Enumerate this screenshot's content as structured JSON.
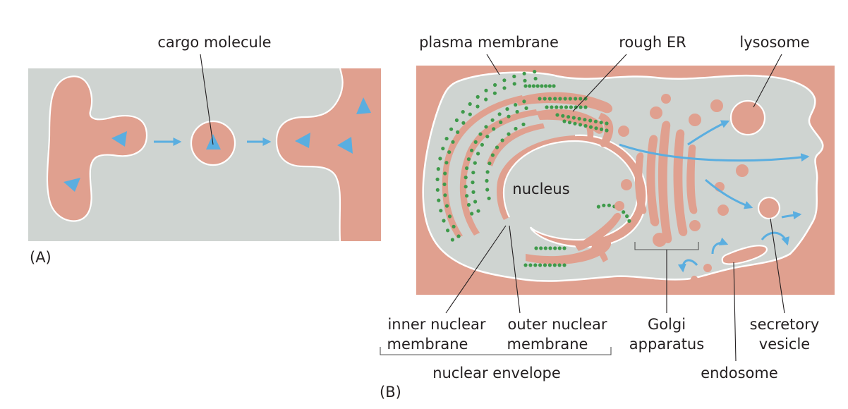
{
  "panel_a": {
    "panel_label": "(A)",
    "labels": {
      "cargo_molecule": "cargo molecule"
    }
  },
  "panel_b": {
    "panel_label": "(B)",
    "labels": {
      "plasma_membrane": "plasma membrane",
      "rough_er": "rough ER",
      "lysosome": "lysosome",
      "nucleus": "nucleus",
      "inner_nuclear_line1": "inner nuclear",
      "inner_nuclear_line2": "membrane",
      "outer_nuclear_line1": "outer nuclear",
      "outer_nuclear_line2": "membrane",
      "golgi_line1": "Golgi",
      "golgi_line2": "apparatus",
      "secretory_line1": "secretory",
      "secretory_line2": "vesicle",
      "nuclear_envelope": "nuclear envelope",
      "endosome": "endosome"
    }
  },
  "colors": {
    "cytosol": "#cfd4d1",
    "lumen": "#e0a08f",
    "membrane": "#ffffff",
    "arrow": "#5aaee0",
    "ribosome": "#3e9a4a"
  }
}
